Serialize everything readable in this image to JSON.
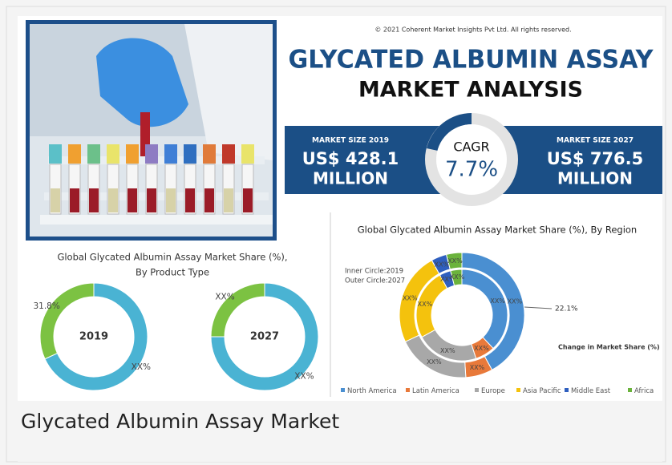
{
  "header": {
    "copyright": "© 2021 Coherent Market Insights Pvt Ltd. All rights reserved.",
    "title_line1": "GLYCATED ALBUMIN ASSAY",
    "title_line2": "MARKET ANALYSIS"
  },
  "stats": {
    "left": {
      "label": "MARKET SIZE 2019",
      "value": "US$ 428.1",
      "unit": "MILLION"
    },
    "center": {
      "label": "CAGR",
      "value": "7.7%"
    },
    "right": {
      "label": "MARKET SIZE 2027",
      "value": "US$ 776.5",
      "unit": "MILLION"
    }
  },
  "chart_data": [
    {
      "type": "donut",
      "title": "Global Glycated Albumin Assay Market Share (%),",
      "subtitle": "By Product Type",
      "center_label": "2019",
      "values": [
        31.8,
        68.2
      ],
      "value_labels": [
        "31.8%",
        "XX%"
      ],
      "colors": [
        "#7cc242",
        "#4ab3d3"
      ]
    },
    {
      "type": "donut",
      "center_label": "2027",
      "values": [
        25,
        75
      ],
      "value_labels": [
        "XX%",
        "XX%"
      ],
      "colors": [
        "#7cc242",
        "#4ab3d3"
      ]
    },
    {
      "type": "ring-donut",
      "title": "Global Glycated Albumin Assay Market Share (%), By Region",
      "categories": [
        "North America",
        "Latin America",
        "Europe",
        "Asia Pacific",
        "Middle East",
        "Africa"
      ],
      "colors": [
        "#4a8fd1",
        "#e8793a",
        "#a8a8a8",
        "#f4c20d",
        "#2f5fbf",
        "#6bb33c"
      ],
      "series": [
        {
          "name": "Inner Circle:2019",
          "values": [
            38,
            7,
            22,
            25,
            4,
            4
          ],
          "value_labels": [
            "XX%",
            "XX%",
            "XX%",
            "XX%",
            "XX%",
            "XX%"
          ]
        },
        {
          "name": "Outer Circle:2027",
          "values": [
            42,
            7,
            19,
            24,
            4,
            4
          ],
          "value_labels": [
            "XX%",
            "XX%",
            "XX%",
            "XX%",
            "XX%",
            "XX%"
          ]
        }
      ],
      "annotation": "22.1%",
      "note": "Change in Market Share (%)"
    }
  ],
  "caption": "Glycated Albumin Assay Market"
}
